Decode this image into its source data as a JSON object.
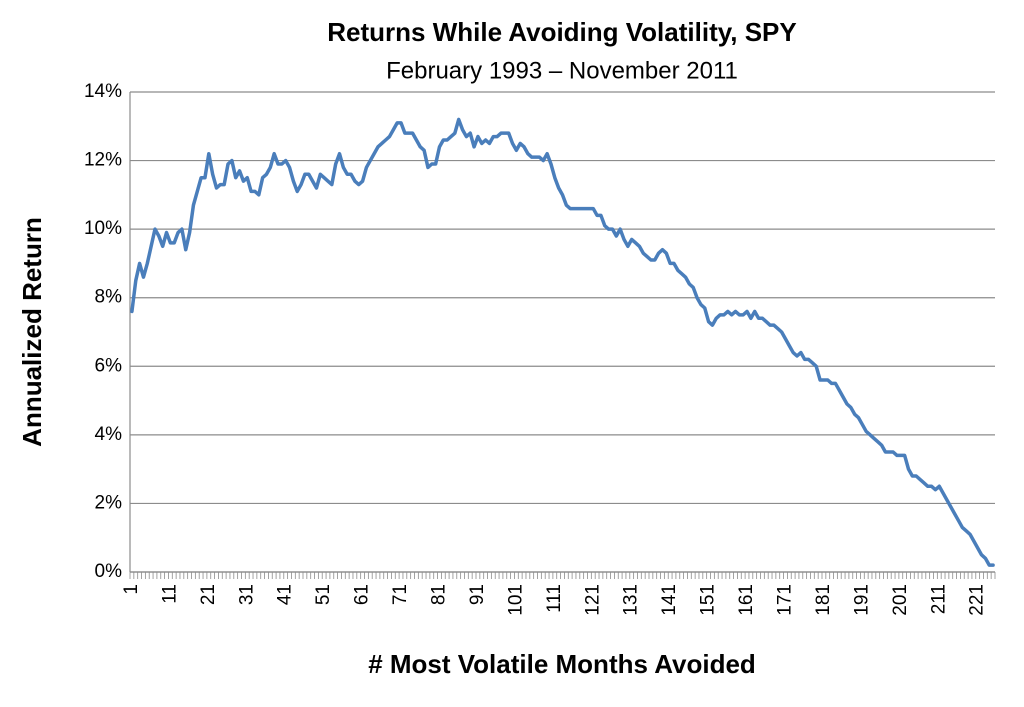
{
  "chart_data": {
    "type": "line",
    "title": "Returns While Avoiding Volatility, SPY",
    "subtitle": "February 1993 – November 2011",
    "x_label": "# Most Volatile Months Avoided",
    "y_label": "Annualized Return",
    "categories": [
      1,
      null,
      null,
      null,
      null,
      null,
      null,
      null,
      null,
      null,
      11,
      null,
      null,
      null,
      null,
      null,
      null,
      null,
      null,
      null,
      21,
      null,
      null,
      null,
      null,
      null,
      null,
      null,
      null,
      null,
      31,
      null,
      null,
      null,
      null,
      null,
      null,
      null,
      null,
      null,
      41,
      null,
      null,
      null,
      null,
      null,
      null,
      null,
      null,
      null,
      51,
      null,
      null,
      null,
      null,
      null,
      null,
      null,
      null,
      null,
      61,
      null,
      null,
      null,
      null,
      null,
      null,
      null,
      null,
      null,
      71,
      null,
      null,
      null,
      null,
      null,
      null,
      null,
      null,
      null,
      81,
      null,
      null,
      null,
      null,
      null,
      null,
      null,
      null,
      null,
      91,
      null,
      null,
      null,
      null,
      null,
      null,
      null,
      null,
      null,
      101,
      null,
      null,
      null,
      null,
      null,
      null,
      null,
      null,
      null,
      111,
      null,
      null,
      null,
      null,
      null,
      null,
      null,
      null,
      null,
      121,
      null,
      null,
      null,
      null,
      null,
      null,
      null,
      null,
      null,
      131,
      null,
      null,
      null,
      null,
      null,
      null,
      null,
      null,
      null,
      141,
      null,
      null,
      null,
      null,
      null,
      null,
      null,
      null,
      null,
      151,
      null,
      null,
      null,
      null,
      null,
      null,
      null,
      null,
      null,
      161,
      null,
      null,
      null,
      null,
      null,
      null,
      null,
      null,
      null,
      171,
      null,
      null,
      null,
      null,
      null,
      null,
      null,
      null,
      null,
      181,
      null,
      null,
      null,
      null,
      null,
      null,
      null,
      null,
      null,
      191,
      null,
      null,
      null,
      null,
      null,
      null,
      null,
      null,
      null,
      201,
      null,
      null,
      null,
      null,
      null,
      null,
      null,
      null,
      null,
      211,
      null,
      null,
      null,
      null,
      null,
      null,
      null,
      null,
      null,
      221,
      null,
      null,
      null,
      null
    ],
    "series": [
      {
        "name": "Annualized Return",
        "color": "#4a7ebb",
        "values": [
          7.6,
          8.5,
          9.0,
          8.6,
          9.0,
          9.5,
          10.0,
          9.8,
          9.5,
          9.9,
          9.6,
          9.6,
          9.9,
          10.0,
          9.4,
          9.9,
          10.7,
          11.1,
          11.5,
          11.5,
          12.2,
          11.6,
          11.2,
          11.3,
          11.3,
          11.9,
          12.0,
          11.5,
          11.7,
          11.4,
          11.5,
          11.1,
          11.1,
          11.0,
          11.5,
          11.6,
          11.8,
          12.2,
          11.9,
          11.9,
          12.0,
          11.8,
          11.4,
          11.1,
          11.3,
          11.6,
          11.6,
          11.4,
          11.2,
          11.6,
          11.5,
          11.4,
          11.3,
          11.9,
          12.2,
          11.8,
          11.6,
          11.6,
          11.4,
          11.3,
          11.4,
          11.8,
          12.0,
          12.2,
          12.4,
          12.5,
          12.6,
          12.7,
          12.9,
          13.1,
          13.1,
          12.8,
          12.8,
          12.8,
          12.6,
          12.4,
          12.3,
          11.8,
          11.9,
          11.9,
          12.4,
          12.6,
          12.6,
          12.7,
          12.8,
          13.2,
          12.9,
          12.7,
          12.8,
          12.4,
          12.7,
          12.5,
          12.6,
          12.5,
          12.7,
          12.7,
          12.8,
          12.8,
          12.8,
          12.5,
          12.3,
          12.5,
          12.4,
          12.2,
          12.1,
          12.1,
          12.1,
          12.0,
          12.2,
          11.9,
          11.5,
          11.2,
          11.0,
          10.7,
          10.6,
          10.6,
          10.6,
          10.6,
          10.6,
          10.6,
          10.6,
          10.4,
          10.4,
          10.1,
          10.0,
          10.0,
          9.8,
          10.0,
          9.7,
          9.5,
          9.7,
          9.6,
          9.5,
          9.3,
          9.2,
          9.1,
          9.1,
          9.3,
          9.4,
          9.3,
          9.0,
          9.0,
          8.8,
          8.7,
          8.6,
          8.4,
          8.3,
          8.0,
          7.8,
          7.7,
          7.3,
          7.2,
          7.4,
          7.5,
          7.5,
          7.6,
          7.5,
          7.6,
          7.5,
          7.5,
          7.6,
          7.4,
          7.6,
          7.4,
          7.4,
          7.3,
          7.2,
          7.2,
          7.1,
          7.0,
          6.8,
          6.6,
          6.4,
          6.3,
          6.4,
          6.2,
          6.2,
          6.1,
          6.0,
          5.6,
          5.6,
          5.6,
          5.5,
          5.5,
          5.3,
          5.1,
          4.9,
          4.8,
          4.6,
          4.5,
          4.3,
          4.1,
          4.0,
          3.9,
          3.8,
          3.7,
          3.5,
          3.5,
          3.5,
          3.4,
          3.4,
          3.4,
          3.0,
          2.8,
          2.8,
          2.7,
          2.6,
          2.5,
          2.5,
          2.4,
          2.5,
          2.3,
          2.1,
          1.9,
          1.7,
          1.5,
          1.3,
          1.2,
          1.1,
          0.9,
          0.7,
          0.5,
          0.4,
          0.2,
          0.2
        ]
      }
    ],
    "ylim": [
      0,
      14
    ],
    "yticks": [
      {
        "value": 0,
        "label": "0%"
      },
      {
        "value": 2,
        "label": "2%"
      },
      {
        "value": 4,
        "label": "4%"
      },
      {
        "value": 6,
        "label": "6%"
      },
      {
        "value": 8,
        "label": "8%"
      },
      {
        "value": 10,
        "label": "10%"
      },
      {
        "value": 12,
        "label": "12%"
      },
      {
        "value": 14,
        "label": "14%"
      }
    ],
    "grid": true
  }
}
